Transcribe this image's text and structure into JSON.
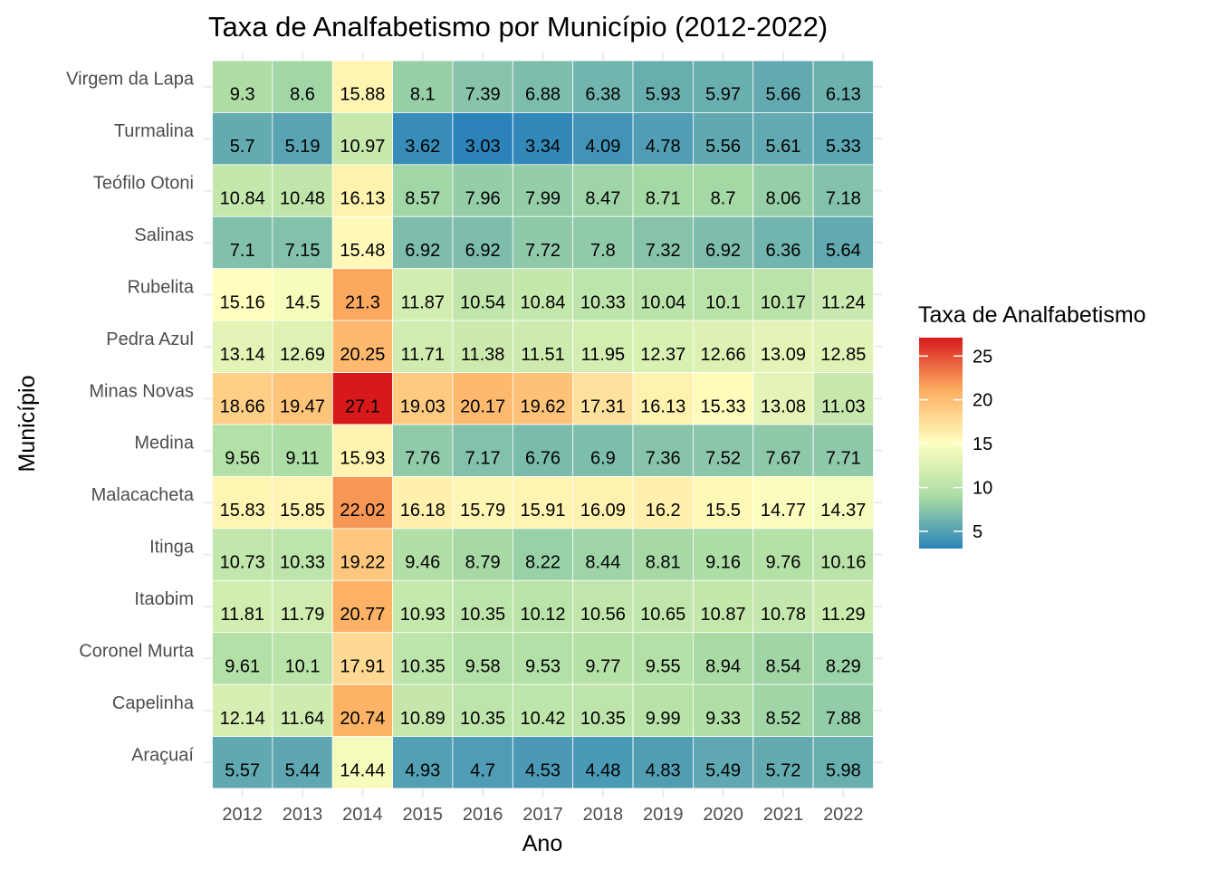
{
  "chart_data": {
    "type": "heatmap",
    "title": "Taxa de Analfabetismo por Município (2012-2022)",
    "xlabel": "Ano",
    "ylabel": "Município",
    "x": [
      "2012",
      "2013",
      "2014",
      "2015",
      "2016",
      "2017",
      "2018",
      "2019",
      "2020",
      "2021",
      "2022"
    ],
    "y": [
      "Virgem da Lapa",
      "Turmalina",
      "Teófilo Otoni",
      "Salinas",
      "Rubelita",
      "Pedra Azul",
      "Minas Novas",
      "Medina",
      "Malacacheta",
      "Itinga",
      "Itaobim",
      "Coronel Murta",
      "Capelinha",
      "Araçuaí"
    ],
    "values": [
      [
        9.3,
        8.6,
        15.88,
        8.1,
        7.39,
        6.88,
        6.38,
        5.93,
        5.97,
        5.66,
        6.13
      ],
      [
        5.7,
        5.19,
        10.97,
        3.62,
        3.03,
        3.34,
        4.09,
        4.78,
        5.56,
        5.61,
        5.33
      ],
      [
        10.84,
        10.48,
        16.13,
        8.57,
        7.96,
        7.99,
        8.47,
        8.71,
        8.7,
        8.06,
        7.18
      ],
      [
        7.1,
        7.15,
        15.48,
        6.92,
        6.92,
        7.72,
        7.8,
        7.32,
        6.92,
        6.36,
        5.64
      ],
      [
        15.16,
        14.5,
        21.3,
        11.87,
        10.54,
        10.84,
        10.33,
        10.04,
        10.1,
        10.17,
        11.24
      ],
      [
        13.14,
        12.69,
        20.25,
        11.71,
        11.38,
        11.51,
        11.95,
        12.37,
        12.66,
        13.09,
        12.85
      ],
      [
        18.66,
        19.47,
        27.1,
        19.03,
        20.17,
        19.62,
        17.31,
        16.13,
        15.33,
        13.08,
        11.03
      ],
      [
        9.56,
        9.11,
        15.93,
        7.76,
        7.17,
        6.76,
        6.9,
        7.36,
        7.52,
        7.67,
        7.71
      ],
      [
        15.83,
        15.85,
        22.02,
        16.18,
        15.79,
        15.91,
        16.09,
        16.2,
        15.5,
        14.77,
        14.37
      ],
      [
        10.73,
        10.33,
        19.22,
        9.46,
        8.79,
        8.22,
        8.44,
        8.81,
        9.16,
        9.76,
        10.16
      ],
      [
        11.81,
        11.79,
        20.77,
        10.93,
        10.35,
        10.12,
        10.56,
        10.65,
        10.87,
        10.78,
        11.29
      ],
      [
        9.61,
        10.1,
        17.91,
        10.35,
        9.58,
        9.53,
        9.77,
        9.55,
        8.94,
        8.54,
        8.29
      ],
      [
        12.14,
        11.64,
        20.74,
        10.89,
        10.35,
        10.42,
        10.35,
        9.99,
        9.33,
        8.52,
        7.88
      ],
      [
        5.57,
        5.44,
        14.44,
        4.93,
        4.7,
        4.53,
        4.48,
        4.83,
        5.49,
        5.72,
        5.98
      ]
    ],
    "legend": {
      "title": "Taxa de Analfabetismo",
      "ticks": [
        "5",
        "10",
        "15",
        "20",
        "25"
      ],
      "range": [
        3.03,
        27.1
      ],
      "placement": "right"
    },
    "colors": [
      "#2b83ba",
      "#abdda4",
      "#ffffbf",
      "#fdae61",
      "#d7191c"
    ],
    "grid": true
  }
}
